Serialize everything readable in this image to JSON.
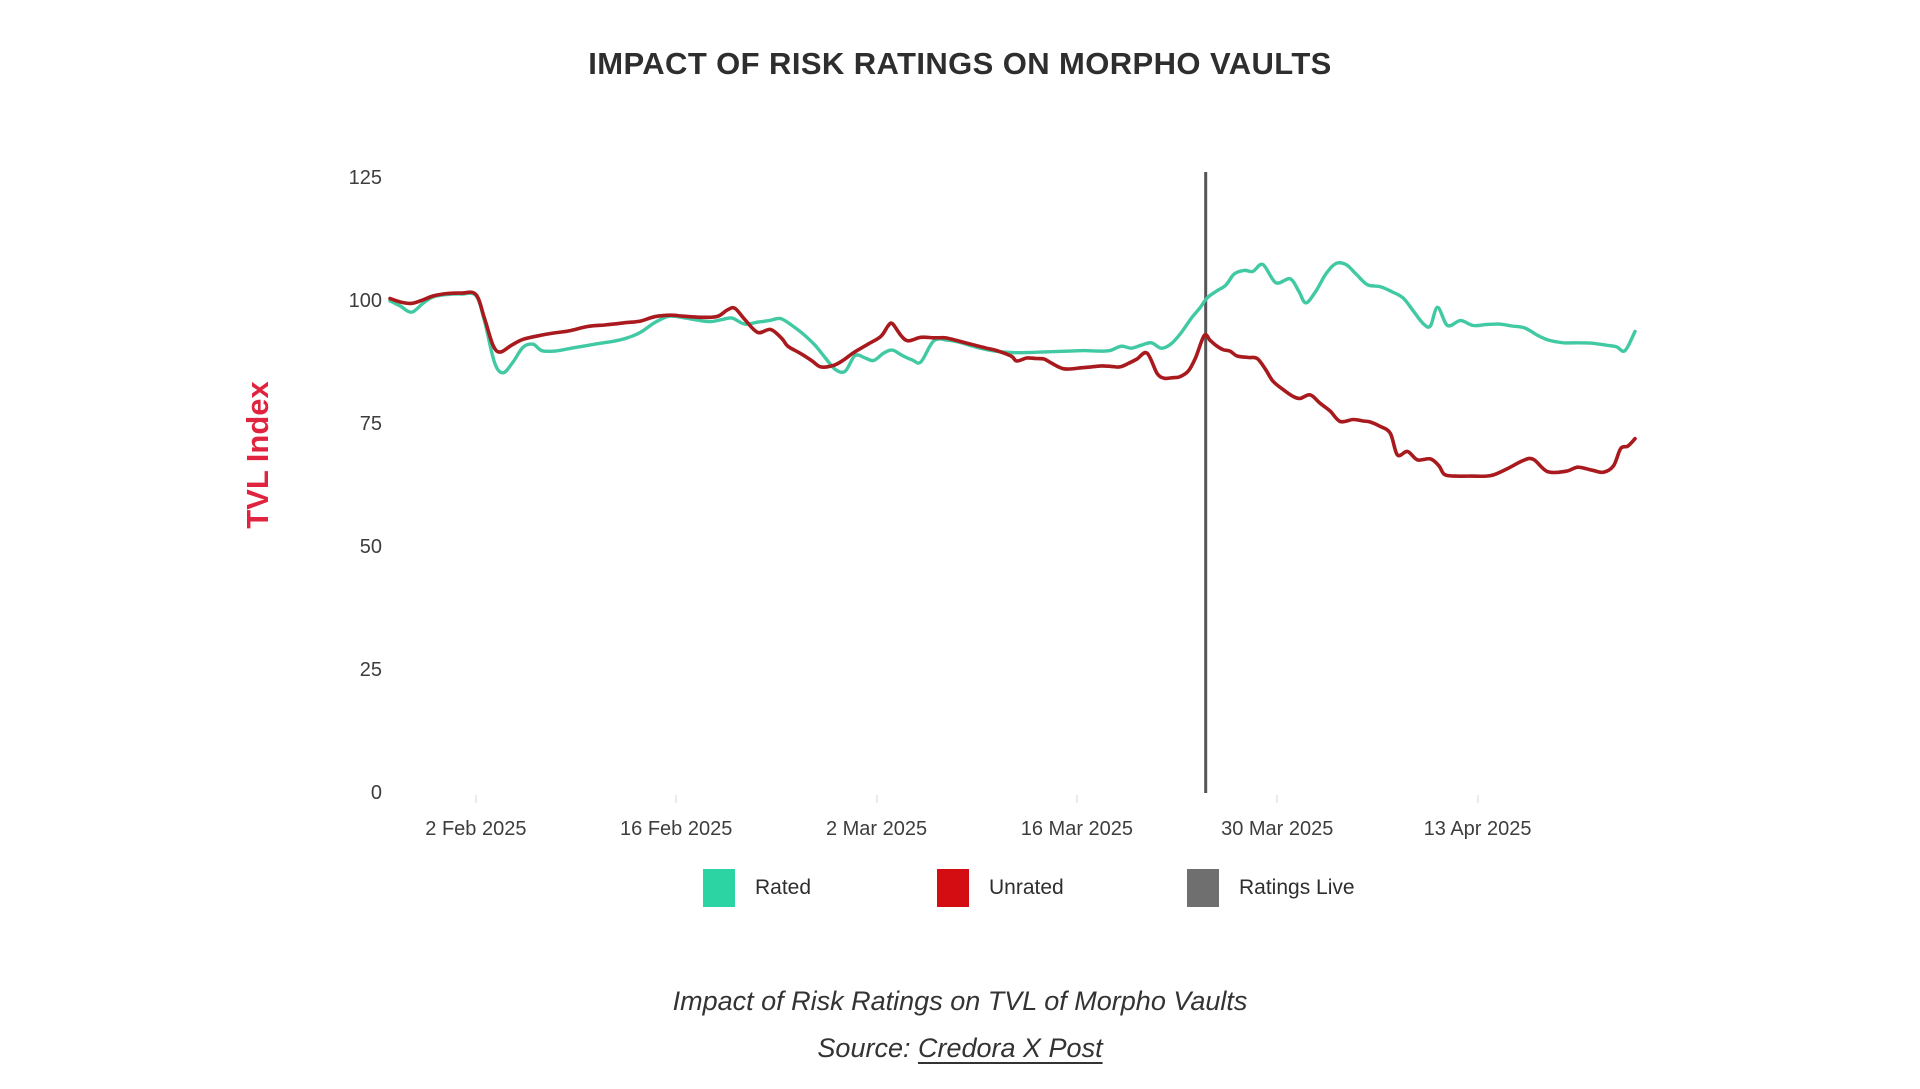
{
  "title": "IMPACT OF RISK RATINGS ON MORPHO VAULTS",
  "y_axis": {
    "title": "TVL Index",
    "title_color": "#e0233f",
    "tick_color": "#3d3d3d"
  },
  "x_axis": {
    "tick_color": "#3d3d3d"
  },
  "legend": {
    "items": [
      {
        "label": "Rated",
        "color": "#2cd4a4"
      },
      {
        "label": "Unrated",
        "color": "#d40d12"
      },
      {
        "label": "Ratings Live",
        "color": "#6f6f6f"
      }
    ]
  },
  "caption": {
    "line1": "Impact of Risk Ratings on TVL of Morpho Vaults",
    "source_prefix": "Source: ",
    "source_link": "Credora X Post"
  },
  "chart_data": {
    "type": "line",
    "title": "IMPACT OF RISK RATINGS ON MORPHO VAULTS",
    "xlabel": "",
    "ylabel": "TVL Index",
    "ylim": [
      0,
      125
    ],
    "y_ticks": [
      125,
      100,
      75,
      50,
      25,
      0
    ],
    "grid": false,
    "legend_position": "bottom",
    "x_unit": "days since 27 Jan 2025",
    "x_range_days": [
      0,
      87
    ],
    "x_tick_days": [
      6,
      20,
      34,
      48,
      62,
      76
    ],
    "x_tick_labels": [
      "2 Feb 2025",
      "16 Feb 2025",
      "2 Mar 2025",
      "16 Mar 2025",
      "30 Mar 2025",
      "13 Apr 2025"
    ],
    "vline": {
      "day": 57,
      "date": "25 Mar 2025",
      "label": "Ratings Live",
      "color": "#555555"
    },
    "series": [
      {
        "name": "Rated",
        "color": "#40c9a2",
        "points": [
          [
            0,
            100.0
          ],
          [
            0.7,
            99.0
          ],
          [
            1.5,
            97.7
          ],
          [
            2.3,
            99.5
          ],
          [
            3,
            100.8
          ],
          [
            4,
            101.3
          ],
          [
            5,
            101.4
          ],
          [
            6,
            101.1
          ],
          [
            6.6,
            96.0
          ],
          [
            7.3,
            87.5
          ],
          [
            7.9,
            85.4
          ],
          [
            8.6,
            87.6
          ],
          [
            9.3,
            90.6
          ],
          [
            10,
            91.2
          ],
          [
            10.6,
            89.9
          ],
          [
            11.5,
            89.8
          ],
          [
            12.5,
            90.3
          ],
          [
            13.5,
            90.8
          ],
          [
            14.5,
            91.3
          ],
          [
            15.6,
            91.8
          ],
          [
            16.5,
            92.4
          ],
          [
            17.5,
            93.6
          ],
          [
            18.5,
            95.6
          ],
          [
            19.5,
            96.9
          ],
          [
            20.5,
            96.6
          ],
          [
            21.5,
            96.1
          ],
          [
            22.4,
            95.8
          ],
          [
            23.2,
            96.2
          ],
          [
            23.9,
            96.5
          ],
          [
            24.8,
            95.3
          ],
          [
            25.7,
            95.7
          ],
          [
            26.5,
            96.0
          ],
          [
            27.3,
            96.4
          ],
          [
            28.1,
            95.0
          ],
          [
            28.9,
            93.2
          ],
          [
            29.7,
            91.0
          ],
          [
            30.4,
            88.5
          ],
          [
            31.1,
            86.1
          ],
          [
            31.8,
            85.7
          ],
          [
            32.5,
            88.9
          ],
          [
            33.2,
            88.4
          ],
          [
            33.8,
            87.9
          ],
          [
            34.5,
            89.4
          ],
          [
            35.1,
            90.0
          ],
          [
            35.8,
            88.9
          ],
          [
            36.5,
            88.0
          ],
          [
            37.1,
            87.6
          ],
          [
            38,
            91.9
          ],
          [
            39,
            92.0
          ],
          [
            39.8,
            91.6
          ],
          [
            40.6,
            90.9
          ],
          [
            41.5,
            90.2
          ],
          [
            42.5,
            89.7
          ],
          [
            43.5,
            89.5
          ],
          [
            44.5,
            89.5
          ],
          [
            45.5,
            89.6
          ],
          [
            46.5,
            89.7
          ],
          [
            47.5,
            89.8
          ],
          [
            48.5,
            89.9
          ],
          [
            49.5,
            89.8
          ],
          [
            50.3,
            89.9
          ],
          [
            51.1,
            90.8
          ],
          [
            51.8,
            90.4
          ],
          [
            52.5,
            91.0
          ],
          [
            53.2,
            91.5
          ],
          [
            53.9,
            90.4
          ],
          [
            54.6,
            91.3
          ],
          [
            55.3,
            93.6
          ],
          [
            56,
            96.5
          ],
          [
            56.6,
            98.6
          ],
          [
            57.1,
            100.6
          ],
          [
            57.7,
            101.9
          ],
          [
            58.4,
            103.2
          ],
          [
            59,
            105.5
          ],
          [
            59.7,
            106.2
          ],
          [
            60.3,
            106.0
          ],
          [
            61,
            107.4
          ],
          [
            61.9,
            103.7
          ],
          [
            62.9,
            104.5
          ],
          [
            63.5,
            102.0
          ],
          [
            64,
            99.6
          ],
          [
            64.7,
            102.0
          ],
          [
            65.4,
            105.5
          ],
          [
            66.1,
            107.6
          ],
          [
            66.8,
            107.4
          ],
          [
            67.5,
            105.5
          ],
          [
            68.3,
            103.3
          ],
          [
            69.2,
            102.9
          ],
          [
            70,
            101.9
          ],
          [
            70.8,
            100.6
          ],
          [
            71.5,
            98.0
          ],
          [
            72.2,
            95.4
          ],
          [
            72.7,
            94.9
          ],
          [
            73.2,
            98.7
          ],
          [
            73.9,
            95.0
          ],
          [
            74.8,
            96.0
          ],
          [
            75.7,
            95.0
          ],
          [
            76.6,
            95.2
          ],
          [
            77.5,
            95.3
          ],
          [
            78.4,
            94.9
          ],
          [
            79.3,
            94.5
          ],
          [
            80.2,
            93.0
          ],
          [
            81,
            92.0
          ],
          [
            82,
            91.5
          ],
          [
            83,
            91.5
          ],
          [
            84,
            91.4
          ],
          [
            85,
            91.0
          ],
          [
            85.7,
            90.7
          ],
          [
            86.3,
            89.9
          ],
          [
            87,
            93.8
          ]
        ]
      },
      {
        "name": "Unrated",
        "color": "#a81a1e",
        "points": [
          [
            0,
            100.5
          ],
          [
            0.7,
            99.8
          ],
          [
            1.5,
            99.5
          ],
          [
            2.3,
            100.2
          ],
          [
            3,
            101.0
          ],
          [
            4,
            101.5
          ],
          [
            5,
            101.6
          ],
          [
            6,
            101.3
          ],
          [
            6.6,
            96.5
          ],
          [
            7.2,
            91.0
          ],
          [
            7.7,
            89.6
          ],
          [
            8.5,
            91.0
          ],
          [
            9.3,
            92.2
          ],
          [
            10.5,
            93.0
          ],
          [
            11.5,
            93.5
          ],
          [
            12.5,
            93.9
          ],
          [
            13.8,
            94.8
          ],
          [
            15,
            95.1
          ],
          [
            15.6,
            95.3
          ],
          [
            16.5,
            95.6
          ],
          [
            17.5,
            95.9
          ],
          [
            18.5,
            96.8
          ],
          [
            19.6,
            97.1
          ],
          [
            20.5,
            96.9
          ],
          [
            21.5,
            96.7
          ],
          [
            22.5,
            96.7
          ],
          [
            23,
            97.0
          ],
          [
            23.6,
            98.2
          ],
          [
            24.1,
            98.5
          ],
          [
            24.8,
            96.2
          ],
          [
            25.7,
            93.6
          ],
          [
            26.6,
            94.2
          ],
          [
            27.4,
            92.3
          ],
          [
            27.8,
            90.8
          ],
          [
            28.7,
            89.3
          ],
          [
            29.5,
            87.8
          ],
          [
            30.1,
            86.6
          ],
          [
            31,
            86.9
          ],
          [
            31.7,
            88.0
          ],
          [
            32.4,
            89.5
          ],
          [
            33.4,
            91.2
          ],
          [
            34.3,
            92.8
          ],
          [
            34.8,
            94.9
          ],
          [
            35.1,
            95.4
          ],
          [
            35.7,
            93.0
          ],
          [
            36.2,
            91.9
          ],
          [
            37.1,
            92.6
          ],
          [
            38,
            92.5
          ],
          [
            38.8,
            92.5
          ],
          [
            39.4,
            92.1
          ],
          [
            40.2,
            91.5
          ],
          [
            41,
            90.9
          ],
          [
            41.7,
            90.4
          ],
          [
            42.4,
            89.9
          ],
          [
            43.4,
            88.8
          ],
          [
            43.8,
            87.8
          ],
          [
            44.5,
            88.4
          ],
          [
            45.1,
            88.3
          ],
          [
            45.7,
            88.2
          ],
          [
            46.2,
            87.4
          ],
          [
            47.1,
            86.2
          ],
          [
            48.3,
            86.4
          ],
          [
            49,
            86.6
          ],
          [
            49.7,
            86.8
          ],
          [
            50.4,
            86.7
          ],
          [
            51,
            86.6
          ],
          [
            51.6,
            87.3
          ],
          [
            52.2,
            88.2
          ],
          [
            52.9,
            89.4
          ],
          [
            53.6,
            85.3
          ],
          [
            54.1,
            84.3
          ],
          [
            54.7,
            84.4
          ],
          [
            55.2,
            84.6
          ],
          [
            55.8,
            85.8
          ],
          [
            56.3,
            88.5
          ],
          [
            56.9,
            93.0
          ],
          [
            57.3,
            92.0
          ],
          [
            57.7,
            91.0
          ],
          [
            58.2,
            90.1
          ],
          [
            58.7,
            89.8
          ],
          [
            59.2,
            88.8
          ],
          [
            60,
            88.5
          ],
          [
            60.6,
            88.3
          ],
          [
            61.2,
            86.0
          ],
          [
            61.7,
            83.7
          ],
          [
            62.4,
            82.0
          ],
          [
            63.1,
            80.6
          ],
          [
            63.6,
            80.2
          ],
          [
            64.3,
            80.9
          ],
          [
            65,
            79.2
          ],
          [
            65.7,
            77.6
          ],
          [
            66.4,
            75.5
          ],
          [
            67.3,
            75.9
          ],
          [
            68,
            75.6
          ],
          [
            68.5,
            75.4
          ],
          [
            69.2,
            74.5
          ],
          [
            69.9,
            73.1
          ],
          [
            70.4,
            68.7
          ],
          [
            71.1,
            69.4
          ],
          [
            71.8,
            67.7
          ],
          [
            72.7,
            67.9
          ],
          [
            73.3,
            66.5
          ],
          [
            73.7,
            64.7
          ],
          [
            74.5,
            64.4
          ],
          [
            75.5,
            64.4
          ],
          [
            76.9,
            64.5
          ],
          [
            78,
            65.8
          ],
          [
            79.2,
            67.6
          ],
          [
            79.9,
            67.8
          ],
          [
            80.9,
            65.3
          ],
          [
            82.2,
            65.4
          ],
          [
            83,
            66.2
          ],
          [
            84,
            65.6
          ],
          [
            84.8,
            65.2
          ],
          [
            85.5,
            66.5
          ],
          [
            86,
            70.0
          ],
          [
            86.5,
            70.5
          ],
          [
            87,
            72.0
          ]
        ]
      }
    ]
  }
}
